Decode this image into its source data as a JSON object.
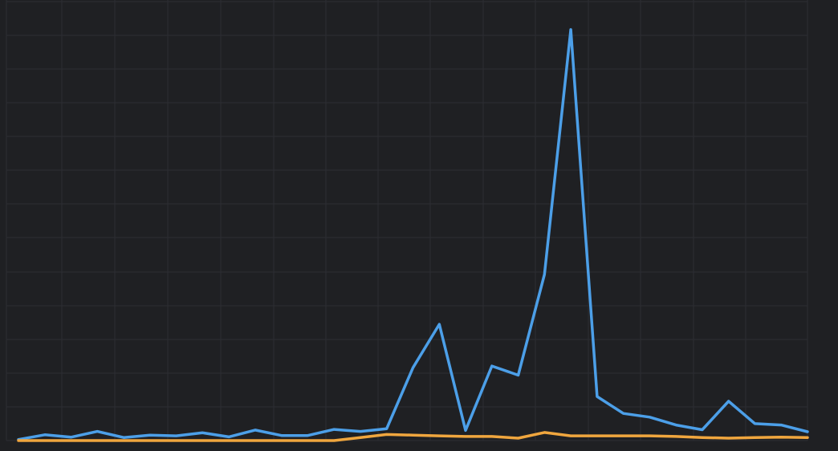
{
  "chart_data": {
    "type": "line",
    "title": "",
    "xlabel": "",
    "ylabel": "",
    "x": [
      0,
      1,
      2,
      3,
      4,
      5,
      6,
      7,
      8,
      9,
      10,
      11,
      12,
      13,
      14,
      15,
      16,
      17,
      18,
      19,
      20,
      21,
      22,
      23,
      24,
      25,
      26,
      27,
      28,
      29,
      30
    ],
    "ylim": [
      0,
      12
    ],
    "grid": true,
    "legend": "none",
    "series": [
      {
        "color": "#4c9fe8",
        "values": [
          0.03,
          0.17,
          0.1,
          0.27,
          0.09,
          0.16,
          0.14,
          0.23,
          0.11,
          0.31,
          0.15,
          0.15,
          0.33,
          0.27,
          0.35,
          2.15,
          3.43,
          0.3,
          2.2,
          1.93,
          4.9,
          12.12,
          1.3,
          0.8,
          0.69,
          0.46,
          0.32,
          1.16,
          0.5,
          0.46,
          0.26
        ]
      },
      {
        "color": "#f0a63e",
        "values": [
          0.0,
          0.0,
          0.0,
          0.0,
          0.0,
          0.0,
          0.0,
          0.0,
          0.0,
          0.0,
          0.0,
          0.0,
          0.0,
          0.09,
          0.18,
          0.16,
          0.14,
          0.12,
          0.12,
          0.07,
          0.24,
          0.14,
          0.14,
          0.14,
          0.14,
          0.12,
          0.09,
          0.07,
          0.09,
          0.1,
          0.09
        ]
      }
    ]
  }
}
